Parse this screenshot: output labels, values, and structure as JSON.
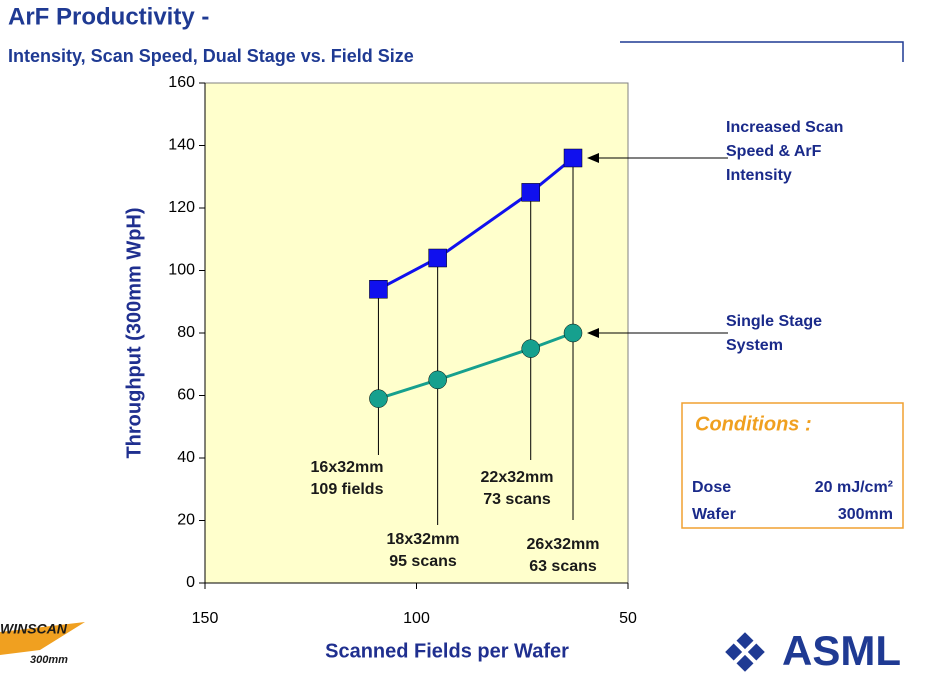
{
  "header": {
    "title": "ArF Productivity -",
    "subtitle": "Intensity, Scan Speed, Dual Stage vs. Field Size"
  },
  "chart_data": {
    "type": "line",
    "x_label": "Scanned Fields per Wafer",
    "y_label": "Throughput (300mm WpH)",
    "x": [
      109,
      95,
      73,
      63
    ],
    "series": [
      {
        "color": "#1010ee",
        "marker": "square",
        "values": [
          94,
          104,
          125,
          136
        ]
      },
      {
        "color": "#16a08e",
        "marker": "circle",
        "values": [
          59,
          65,
          75,
          80
        ]
      }
    ],
    "xlim": [
      150,
      50
    ],
    "xticks": [
      150,
      100,
      50
    ],
    "ylim": [
      0,
      160
    ],
    "yticks": [
      0,
      20,
      40,
      60,
      80,
      100,
      120,
      140,
      160
    ],
    "field_labels": [
      [
        "16x32mm",
        "109 fields"
      ],
      [
        "18x32mm",
        "95 scans"
      ],
      [
        "22x32mm",
        "73 scans"
      ],
      [
        "26x32mm",
        "63 scans"
      ]
    ],
    "series_labels": [
      [
        "Increased Scan",
        "Speed & ArF",
        "Intensity"
      ],
      [
        "Single Stage",
        "System"
      ]
    ]
  },
  "conditions": {
    "title": "Conditions :",
    "rows": [
      [
        "Dose",
        "20 mJ/cm²"
      ],
      [
        "Wafer",
        "300mm"
      ]
    ]
  },
  "logos": {
    "left": "WINSCAN",
    "left_sub": "300mm",
    "right": "ASML"
  }
}
